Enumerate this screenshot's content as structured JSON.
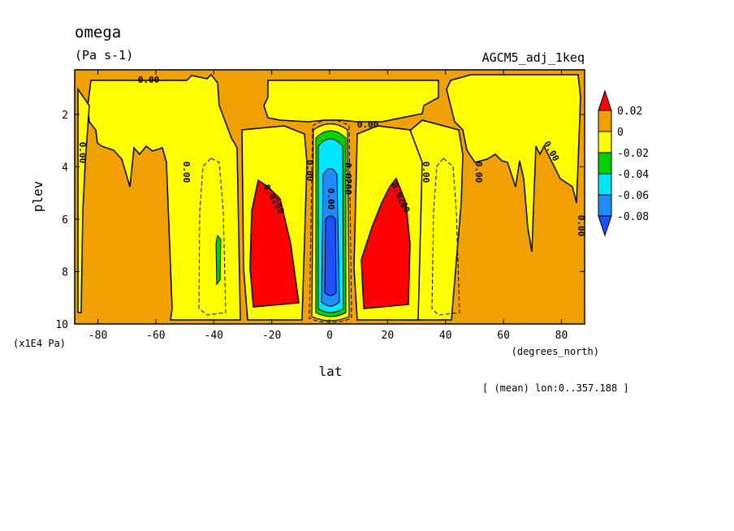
{
  "chart_data": {
    "type": "heatmap",
    "title": "omega",
    "units": "(Pa s-1)",
    "dataset": "AGCM5_adj_1keq",
    "xlabel": "lat",
    "xunits": "(degrees_north)",
    "ylabel": "plev",
    "yunits": "(x1E4 Pa)",
    "note": "[ (mean) lon:0..357.188 ]",
    "xlim": [
      -88,
      88
    ],
    "ylim": [
      10,
      0.3
    ],
    "x_ticks": [
      "-80",
      "-60",
      "-40",
      "-20",
      "0",
      "20",
      "40",
      "60",
      "80"
    ],
    "y_ticks": [
      "2",
      "4",
      "6",
      "8",
      "10"
    ],
    "colorbar": {
      "levels": [
        "0.02",
        "0",
        "-0.02",
        "-0.04",
        "-0.06",
        "-0.08"
      ],
      "colors": [
        "#ff0000",
        "#f0a000",
        "#ffff00",
        "#00d200",
        "#00e6ff",
        "#1e8cff",
        "#1e50ff"
      ]
    },
    "contour_labels": [
      "0.00",
      "0.00",
      "0.00",
      "0.00",
      "0.00",
      "0.00",
      "0.00",
      "0.00",
      "0.0200",
      "0.0200",
      "0.0200",
      "0.00",
      "0.00"
    ],
    "regions": [
      {
        "value": "0 to 0.02",
        "lat_range": [
          -88,
          88
        ],
        "plev_range": [
          0.3,
          10
        ]
      },
      {
        "value": "-0.02 to 0",
        "lat_range": [
          -84,
          -52
        ],
        "plev_range": [
          0.5,
          10
        ]
      },
      {
        "value": "-0.02 to 0",
        "lat_range": [
          -32,
          32
        ],
        "plev_range": [
          0.4,
          1.9
        ]
      },
      {
        "value": "-0.02 to 0",
        "lat_range": [
          50,
          86
        ],
        "plev_range": [
          0.5,
          7.5
        ]
      },
      {
        "value": "-0.02 to 0",
        "lat_range": [
          -6,
          6
        ],
        "plev_range": [
          2,
          10
        ]
      },
      {
        "value": "-0.08 to -0.02",
        "lat_range": [
          -4,
          4
        ],
        "plev_range": [
          2.5,
          9.8
        ]
      },
      {
        "value": ">0.02",
        "lat_range": [
          -27,
          -10
        ],
        "plev_range": [
          4.3,
          9.5
        ]
      },
      {
        "value": ">0.02",
        "lat_range": [
          10,
          27
        ],
        "plev_range": [
          4.3,
          9.5
        ]
      }
    ]
  }
}
